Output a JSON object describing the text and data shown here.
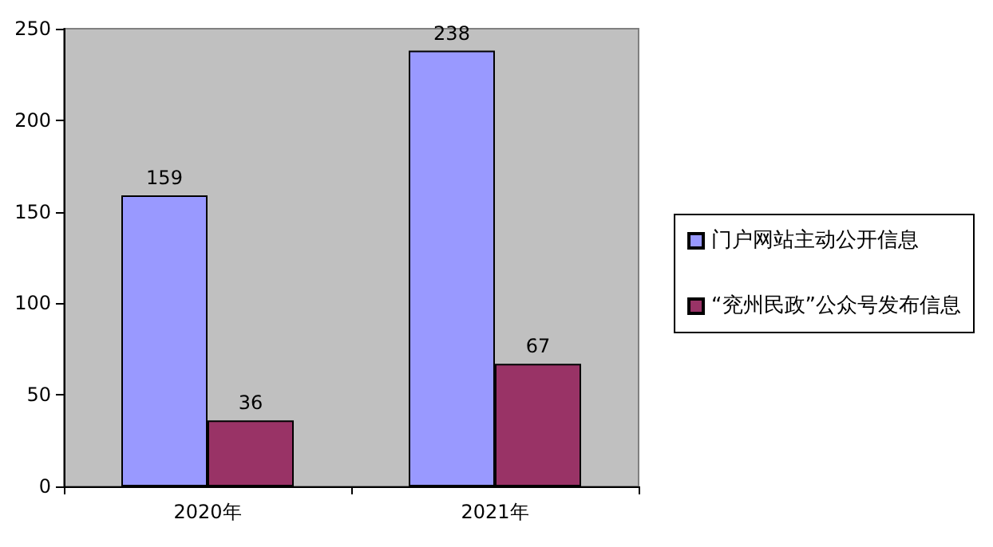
{
  "chart_data": {
    "type": "bar",
    "categories": [
      "2020年",
      "2021年"
    ],
    "series": [
      {
        "name": "门户网站主动公开信息",
        "color": "#9999ff",
        "values": [
          159,
          238
        ]
      },
      {
        "name": "“兖州民政”公众号发布信息",
        "color": "#993366",
        "values": [
          36,
          67
        ]
      }
    ],
    "ylim": [
      0,
      250
    ],
    "yticks": [
      0,
      50,
      100,
      150,
      200,
      250
    ],
    "data_labels": true,
    "legend": "right",
    "grid": false
  }
}
